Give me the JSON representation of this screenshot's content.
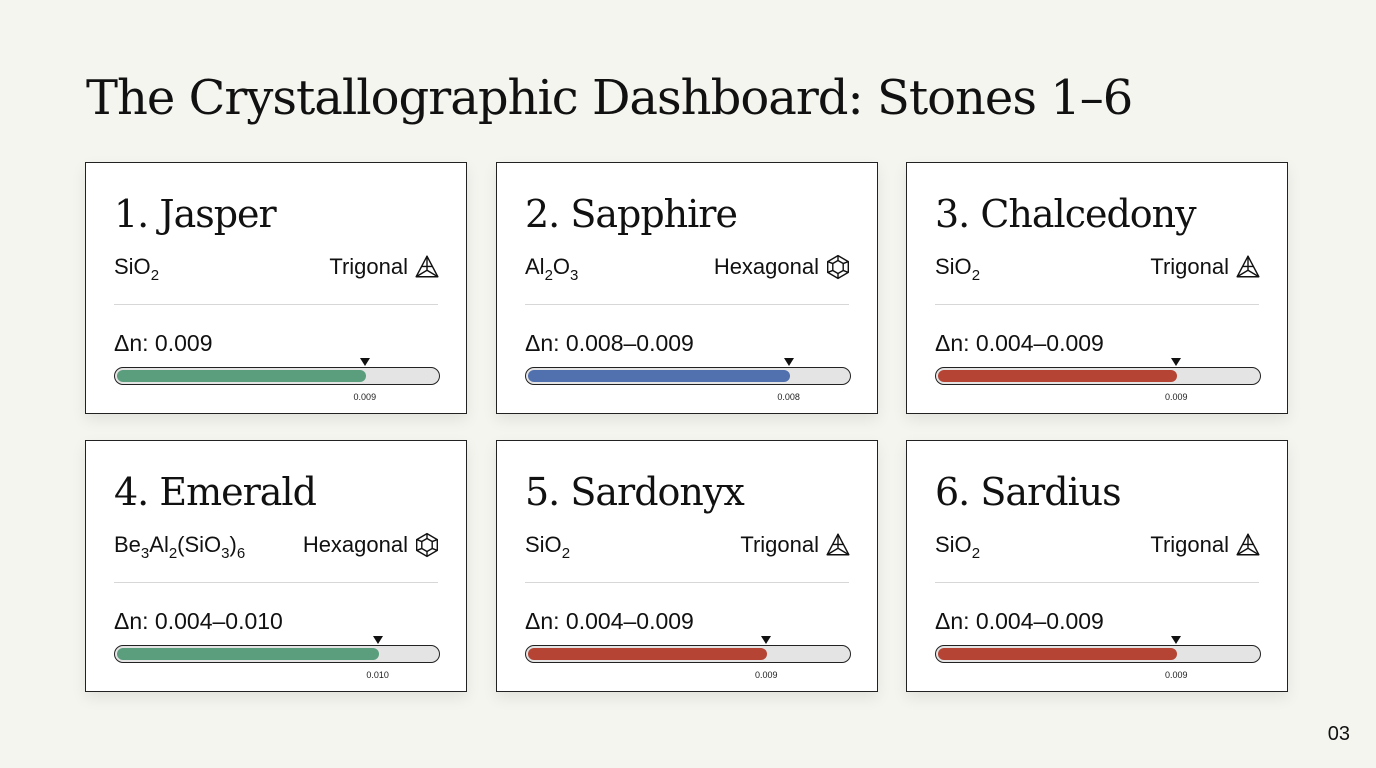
{
  "title": "The Crystallographic Dashboard: Stones 1–6",
  "page_number": "03",
  "colors": {
    "green": "#5a9e7e",
    "blue": "#5170ae",
    "red": "#b54435"
  },
  "stones": [
    {
      "name": "1. Jasper",
      "formula": [
        {
          "t": "SiO"
        },
        {
          "t": "2",
          "sub": true
        }
      ],
      "system": "Trigonal",
      "system_icon": "trigonal-icon",
      "birefringence": "Δn: 0.009",
      "bar_color": "#5a9e7e",
      "bar_level": 0.78,
      "marker_label": "0.009"
    },
    {
      "name": "2. Sapphire",
      "formula": [
        {
          "t": "Al"
        },
        {
          "t": "2",
          "sub": true
        },
        {
          "t": "O"
        },
        {
          "t": "3",
          "sub": true
        }
      ],
      "system": "Hexagonal",
      "system_icon": "hexagonal-icon",
      "birefringence": "Δn: 0.008–0.009",
      "bar_color": "#5170ae",
      "bar_level": 0.82,
      "marker_label": "0.008"
    },
    {
      "name": "3. Chalcedony",
      "formula": [
        {
          "t": "SiO"
        },
        {
          "t": "2",
          "sub": true
        }
      ],
      "system": "Trigonal",
      "system_icon": "trigonal-icon",
      "birefringence": "Δn: 0.004–0.009",
      "bar_color": "#b54435",
      "bar_level": 0.75,
      "marker_label": "0.009"
    },
    {
      "name": "4. Emerald",
      "formula": [
        {
          "t": "Be"
        },
        {
          "t": "3",
          "sub": true
        },
        {
          "t": "Al"
        },
        {
          "t": "2",
          "sub": true
        },
        {
          "t": "(SiO"
        },
        {
          "t": "3",
          "sub": true
        },
        {
          "t": ")"
        },
        {
          "t": "6",
          "sub": true
        }
      ],
      "system": "Hexagonal",
      "system_icon": "hexagonal-icon",
      "birefringence": "Δn: 0.004–0.010",
      "bar_color": "#5a9e7e",
      "bar_level": 0.82,
      "marker_label": "0.010"
    },
    {
      "name": "5. Sardonyx",
      "formula": [
        {
          "t": "SiO"
        },
        {
          "t": "2",
          "sub": true
        }
      ],
      "system": "Trigonal",
      "system_icon": "trigonal-icon",
      "birefringence": "Δn: 0.004–0.009",
      "bar_color": "#b54435",
      "bar_level": 0.75,
      "marker_label": "0.009"
    },
    {
      "name": "6. Sardius",
      "formula": [
        {
          "t": "SiO"
        },
        {
          "t": "2",
          "sub": true
        }
      ],
      "system": "Trigonal",
      "system_icon": "trigonal-icon",
      "birefringence": "Δn: 0.004–0.009",
      "bar_color": "#b54435",
      "bar_level": 0.75,
      "marker_label": "0.009"
    }
  ]
}
